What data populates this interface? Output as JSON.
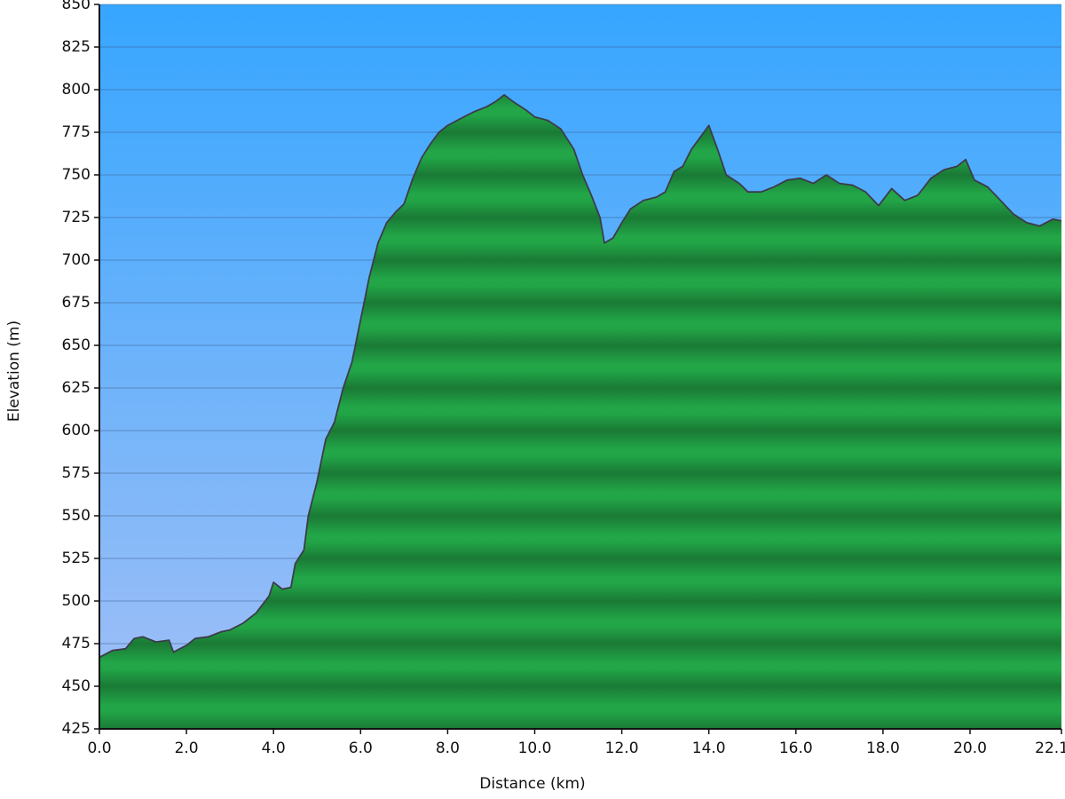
{
  "chart_data": {
    "type": "area",
    "xlabel": "Distance (km)",
    "ylabel": "Elevation (m)",
    "x": [
      0,
      0.3,
      0.6,
      0.8,
      1.0,
      1.3,
      1.6,
      1.7,
      2.0,
      2.2,
      2.5,
      2.8,
      3.0,
      3.3,
      3.6,
      3.9,
      4.0,
      4.2,
      4.4,
      4.5,
      4.7,
      4.8,
      5.0,
      5.2,
      5.4,
      5.6,
      5.8,
      6.0,
      6.2,
      6.4,
      6.6,
      6.8,
      7.0,
      7.2,
      7.4,
      7.6,
      7.8,
      8.0,
      8.3,
      8.6,
      8.9,
      9.1,
      9.3,
      9.5,
      9.8,
      10.0,
      10.3,
      10.6,
      10.9,
      11.1,
      11.3,
      11.5,
      11.6,
      11.8,
      12.0,
      12.2,
      12.5,
      12.8,
      13.0,
      13.2,
      13.4,
      13.6,
      13.8,
      14.0,
      14.2,
      14.4,
      14.7,
      14.9,
      15.2,
      15.5,
      15.8,
      16.1,
      16.4,
      16.7,
      17.0,
      17.3,
      17.6,
      17.9,
      18.2,
      18.5,
      18.8,
      19.1,
      19.4,
      19.7,
      19.9,
      20.1,
      20.4,
      20.7,
      21.0,
      21.3,
      21.6,
      21.9,
      22.1
    ],
    "y": [
      467,
      471,
      472,
      478,
      479,
      476,
      477,
      470,
      474,
      478,
      479,
      482,
      483,
      487,
      493,
      503,
      511,
      507,
      508,
      522,
      530,
      550,
      570,
      595,
      605,
      625,
      640,
      665,
      690,
      710,
      722,
      728,
      733,
      748,
      760,
      768,
      775,
      779,
      783,
      787,
      790,
      793,
      797,
      793,
      788,
      784,
      782,
      777,
      765,
      750,
      738,
      725,
      710,
      713,
      722,
      730,
      735,
      737,
      740,
      752,
      755,
      765,
      772,
      779,
      765,
      750,
      745,
      740,
      740,
      743,
      747,
      748,
      745,
      750,
      745,
      744,
      740,
      732,
      742,
      735,
      738,
      748,
      753,
      755,
      759,
      747,
      743,
      735,
      727,
      722,
      720,
      724,
      723
    ],
    "color": "#22a648",
    "xlim": [
      0,
      22.1
    ],
    "ylim": [
      425,
      850
    ],
    "xticks": [
      {
        "value": 0,
        "label": "0.0"
      },
      {
        "value": 2,
        "label": "2.0"
      },
      {
        "value": 4,
        "label": "4.0"
      },
      {
        "value": 6,
        "label": "6.0"
      },
      {
        "value": 8,
        "label": "8.0"
      },
      {
        "value": 10,
        "label": "10.0"
      },
      {
        "value": 12,
        "label": "12.0"
      },
      {
        "value": 14,
        "label": "14.0"
      },
      {
        "value": 16,
        "label": "16.0"
      },
      {
        "value": 18,
        "label": "18.0"
      },
      {
        "value": 20,
        "label": "20.0"
      },
      {
        "value": 22.1,
        "label": "22.1"
      }
    ],
    "yticks": [
      425,
      450,
      475,
      500,
      525,
      550,
      575,
      600,
      625,
      650,
      675,
      700,
      725,
      750,
      775,
      800,
      825,
      850
    ],
    "grid": true
  }
}
